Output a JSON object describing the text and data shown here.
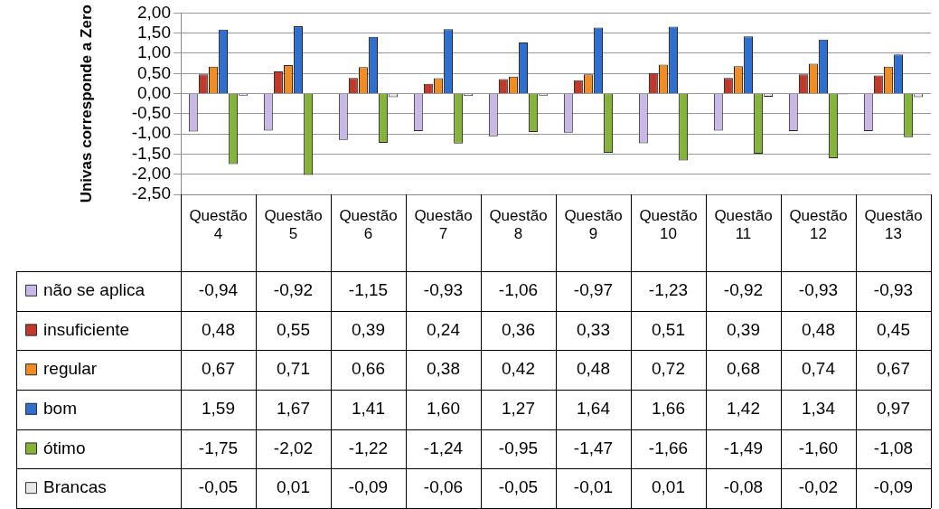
{
  "chart_data": {
    "type": "bar",
    "ylabel": "Univas corresponde a Zero",
    "categories": [
      "Questão 4",
      "Questão 5",
      "Questão 6",
      "Questão 7",
      "Questão 8",
      "Questão 9",
      "Questão 10",
      "Questão 11",
      "Questão 12",
      "Questão 13"
    ],
    "series": [
      {
        "name": "não se aplica",
        "color": "#c8b8e6",
        "values": [
          -0.94,
          -0.92,
          -1.15,
          -0.93,
          -1.06,
          -0.97,
          -1.23,
          -0.92,
          -0.93,
          -0.93
        ],
        "value_labels": [
          "-0,94",
          "-0,92",
          "-1,15",
          "-0,93",
          "-1,06",
          "-0,97",
          "-1,23",
          "-0,92",
          "-0,93",
          "-0,93"
        ]
      },
      {
        "name": "insuficiente",
        "color": "#c0392b",
        "values": [
          0.48,
          0.55,
          0.39,
          0.24,
          0.36,
          0.33,
          0.51,
          0.39,
          0.48,
          0.45
        ],
        "value_labels": [
          "0,48",
          "0,55",
          "0,39",
          "0,24",
          "0,36",
          "0,33",
          "0,51",
          "0,39",
          "0,48",
          "0,45"
        ]
      },
      {
        "name": "regular",
        "color": "#f08c24",
        "values": [
          0.67,
          0.71,
          0.66,
          0.38,
          0.42,
          0.48,
          0.72,
          0.68,
          0.74,
          0.67
        ],
        "value_labels": [
          "0,67",
          "0,71",
          "0,66",
          "0,38",
          "0,42",
          "0,48",
          "0,72",
          "0,68",
          "0,74",
          "0,67"
        ]
      },
      {
        "name": "bom",
        "color": "#2f6fcf",
        "values": [
          1.59,
          1.67,
          1.41,
          1.6,
          1.27,
          1.64,
          1.66,
          1.42,
          1.34,
          0.97
        ],
        "value_labels": [
          "1,59",
          "1,67",
          "1,41",
          "1,60",
          "1,27",
          "1,64",
          "1,66",
          "1,42",
          "1,34",
          "0,97"
        ]
      },
      {
        "name": "ótimo",
        "color": "#86b43a",
        "values": [
          -1.75,
          -2.02,
          -1.22,
          -1.24,
          -0.95,
          -1.47,
          -1.66,
          -1.49,
          -1.6,
          -1.08
        ],
        "value_labels": [
          "-1,75",
          "-2,02",
          "-1,22",
          "-1,24",
          "-0,95",
          "-1,47",
          "-1,66",
          "-1,49",
          "-1,60",
          "-1,08"
        ]
      },
      {
        "name": "Brancas",
        "color": "#e8e8e8",
        "values": [
          -0.05,
          0.01,
          -0.09,
          -0.06,
          -0.05,
          -0.01,
          0.01,
          -0.08,
          -0.02,
          -0.09
        ],
        "value_labels": [
          "-0,05",
          "0,01",
          "-0,09",
          "-0,06",
          "-0,05",
          "-0,01",
          "0,01",
          "-0,08",
          "-0,02",
          "-0,09"
        ]
      }
    ],
    "ylim": [
      -2.5,
      2
    ],
    "yticks": [
      {
        "value": -2.5,
        "label": "-2,50"
      },
      {
        "value": -2,
        "label": "-2,00"
      },
      {
        "value": -1.5,
        "label": "-1,50"
      },
      {
        "value": -1,
        "label": "-1,00"
      },
      {
        "value": -0.5,
        "label": "-0,50"
      },
      {
        "value": 0,
        "label": "0,00"
      },
      {
        "value": 0.5,
        "label": "0,50"
      },
      {
        "value": 1,
        "label": "1,00"
      },
      {
        "value": 1.5,
        "label": "1,50"
      },
      {
        "value": 2,
        "label": "2,00"
      }
    ],
    "grid": "y",
    "legend": "bottom"
  }
}
